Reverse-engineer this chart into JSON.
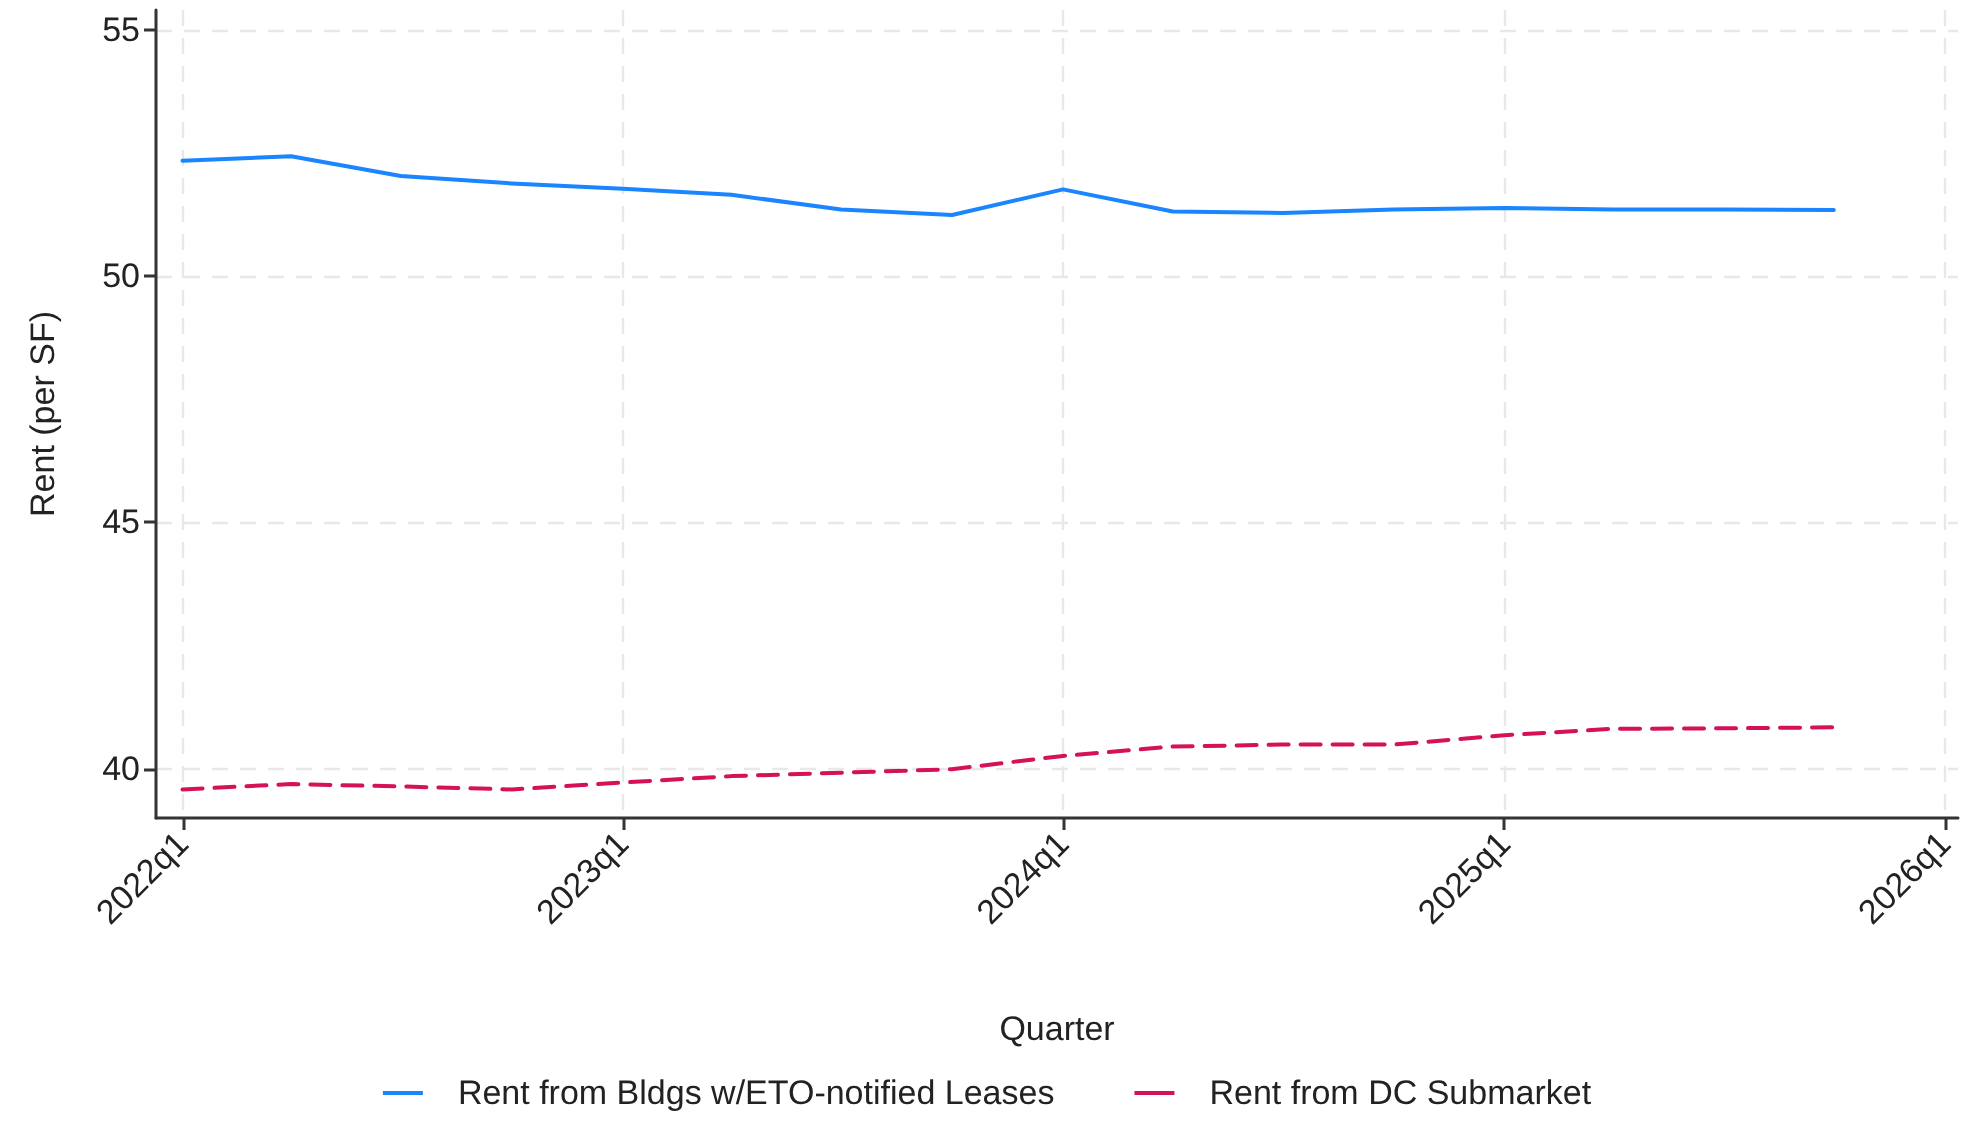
{
  "chart_data": {
    "type": "line",
    "xlabel": "Quarter",
    "ylabel": "Rent (per SF)",
    "x": [
      "2022-01",
      "2022-04",
      "2022-07",
      "2022-10",
      "2023-01",
      "2023-04",
      "2023-07",
      "2023-10",
      "2024-01",
      "2024-04",
      "2024-07",
      "2024-10",
      "2025-01",
      "2025-04",
      "2025-07",
      "2025-10"
    ],
    "series": [
      {
        "name": "Rent from Bldgs w/ETO-notified Leases",
        "color": "#1a85ff",
        "line_style": "solid",
        "values": [
          52.34,
          52.43,
          52.03,
          51.88,
          51.77,
          51.65,
          51.35,
          51.24,
          51.76,
          51.31,
          51.28,
          51.35,
          51.38,
          51.35,
          51.35,
          51.34
        ]
      },
      {
        "name": "Rent from DC Submarket",
        "color": "#d41159",
        "line_style": "dashed",
        "values": [
          39.58,
          39.69,
          39.64,
          39.58,
          39.72,
          39.85,
          39.92,
          39.99,
          40.26,
          40.45,
          40.49,
          40.49,
          40.68,
          40.81,
          40.82,
          40.84
        ]
      }
    ],
    "xlim": [
      "2021-12-10",
      "2026-01-12"
    ],
    "xticks": [
      {
        "value": "2022-01",
        "label": "2022q1"
      },
      {
        "value": "2023-01",
        "label": "2023q1"
      },
      {
        "value": "2024-01",
        "label": "2024q1"
      },
      {
        "value": "2025-01",
        "label": "2025q1"
      },
      {
        "value": "2026-01",
        "label": "2026q1"
      }
    ],
    "ylim": [
      39.0,
      55.4
    ],
    "yticks": [
      40,
      45,
      50,
      55
    ],
    "grid": true,
    "legend": "bottom",
    "marker": "none"
  }
}
